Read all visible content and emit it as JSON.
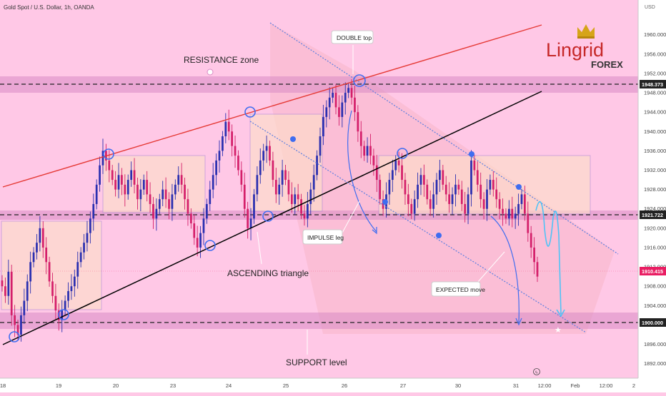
{
  "header": {
    "symbol": "Gold Spot / U.S. Dollar, 1h, OANDA",
    "currency": "USD"
  },
  "logo": {
    "brand": "Lingrid",
    "sub": "FOREX"
  },
  "colors": {
    "bullish": "#2a2fb0",
    "bearish": "#d41f6a",
    "resistance_line": "#e53935",
    "support_line": "#000000",
    "zone": "#d98ac4",
    "channel": "#5a7ee0",
    "projection": "#4fc3f7",
    "price_tag": "#e91e63",
    "logo_red": "#c62828",
    "logo_gold": "#d6a419"
  },
  "annotations": {
    "resistance_zone": "RESISTANCE zone",
    "double_top": "DOUBLE top",
    "impulse_leg": "IMPULSE leg",
    "ascending_triangle": "ASCENDING triangle",
    "expected_move": "EXPECTED move",
    "support_level": "SUPPORT level"
  },
  "price_tags": {
    "resistance": "1948.373",
    "mid": "1921.722",
    "current": "1910.415",
    "support": "1900.000"
  },
  "chart_data": {
    "type": "candlestick",
    "title": "Gold Spot / U.S. Dollar, 1h, OANDA",
    "y_unit": "USD",
    "ylim": [
      1889,
      1966
    ],
    "y_ticks": [
      "1960.000",
      "1956.000",
      "1952.000",
      "1948.000",
      "1944.000",
      "1940.000",
      "1936.000",
      "1932.000",
      "1928.000",
      "1924.000",
      "1920.000",
      "1916.000",
      "1912.000",
      "1908.000",
      "1904.000",
      "1900.000",
      "1896.000",
      "1892.000"
    ],
    "x_ticks": [
      "18",
      "19",
      "20",
      "23",
      "24",
      "25",
      "26",
      "27",
      "30",
      "31",
      "12:00",
      "Feb",
      "12:00",
      "2"
    ],
    "levels": {
      "resistance": 1948.373,
      "mid": 1921.722,
      "support": 1900.0,
      "current": 1910.415
    },
    "approx_closes": [
      1908,
      1906,
      1911,
      1902,
      1900,
      1898,
      1902,
      1905,
      1909,
      1913,
      1915,
      1917,
      1920,
      1916,
      1913,
      1909,
      1906,
      1903,
      1901,
      1903,
      1905,
      1907,
      1908,
      1910,
      1913,
      1915,
      1917,
      1919,
      1922,
      1925,
      1929,
      1933,
      1936,
      1934,
      1932,
      1930,
      1928,
      1931,
      1929,
      1927,
      1930,
      1932,
      1929,
      1926,
      1928,
      1930,
      1927,
      1925,
      1922,
      1924,
      1926,
      1928,
      1926,
      1924,
      1927,
      1929,
      1931,
      1929,
      1926,
      1923,
      1921,
      1918,
      1916,
      1919,
      1922,
      1925,
      1928,
      1931,
      1934,
      1936,
      1939,
      1942,
      1940,
      1937,
      1935,
      1932,
      1929,
      1924,
      1920,
      1922,
      1927,
      1931,
      1934,
      1936,
      1937,
      1934,
      1930,
      1927,
      1929,
      1932,
      1930,
      1927,
      1925,
      1927,
      1926,
      1923,
      1922,
      1925,
      1928,
      1931,
      1935,
      1939,
      1943,
      1945,
      1947,
      1948,
      1945,
      1943,
      1946,
      1948,
      1949,
      1947,
      1944,
      1940,
      1937,
      1935,
      1937,
      1935,
      1933,
      1930,
      1926,
      1924,
      1927,
      1930,
      1932,
      1934,
      1933,
      1930,
      1927,
      1925,
      1923,
      1926,
      1929,
      1931,
      1929,
      1926,
      1924,
      1927,
      1930,
      1932,
      1929,
      1927,
      1925,
      1927,
      1929,
      1928,
      1925,
      1923,
      1927,
      1934,
      1932,
      1929,
      1926,
      1924,
      1928,
      1930,
      1928,
      1926,
      1924,
      1923,
      1922,
      1924,
      1922,
      1923,
      1925,
      1927,
      1923,
      1919,
      1916,
      1913,
      1910
    ]
  }
}
